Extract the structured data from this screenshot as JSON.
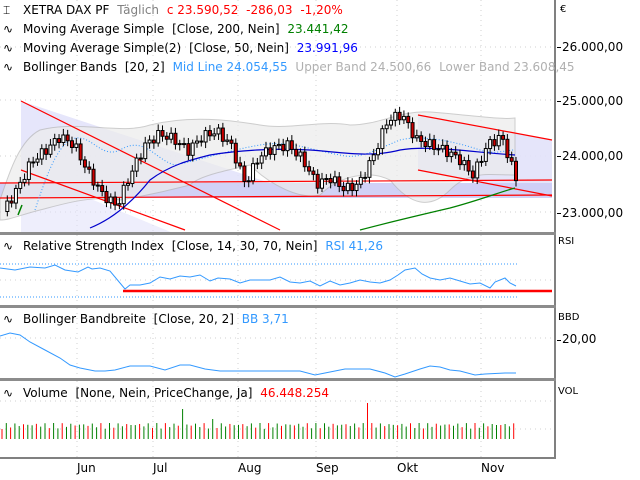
{
  "price_panel": {
    "symbol": "XETRA DAX PF",
    "period": "Täglich",
    "close_label": "c 23.590,52",
    "change": "-286,03",
    "change_pct": "-1,20%",
    "currency_symbol": "€",
    "indicators": [
      {
        "name": "Moving Average Simple",
        "params": "[Close, 200, Nein]",
        "value": "23.441,42",
        "color": "#008000"
      },
      {
        "name": "Moving Average Simple(2)",
        "params": "[Close, 50, Nein]",
        "value": "23.991,96",
        "color": "#0000ff"
      },
      {
        "name": "Bollinger Bands",
        "params": "[20, 2]",
        "mid": "Mid Line 24.054,55",
        "upper": "Upper Band 24.500,66",
        "lower": "Lower Band 23.608,45",
        "mid_color": "#3399ff",
        "band_color": "#c0c0c0"
      }
    ],
    "y_ticks": [
      "26.000,00",
      "25.000,00",
      "24.000,00",
      "23.000,00"
    ]
  },
  "rsi_panel": {
    "name": "Relative Strength Index",
    "params": "[Close, 14, 30, 70, Nein]",
    "value": "RSI 41,26",
    "axis_label": "RSI"
  },
  "bbw_panel": {
    "name": "Bollinger Bandbreite",
    "params": "[Close, 20, 2]",
    "value": "BB 3,71",
    "axis_label": "BBD",
    "y_ticks": [
      "20,00"
    ]
  },
  "volume_panel": {
    "name": "Volume",
    "params": "[None, Nein, PriceChange, Ja]",
    "value": "46.448.254",
    "axis_label": "VOL"
  },
  "x_axis": {
    "labels": [
      "Jun",
      "Jul",
      "Aug",
      "Sep",
      "Okt",
      "Nov"
    ]
  },
  "colors": {
    "up": "#ffffff",
    "down": "#cc0000",
    "trend": "#ff0000",
    "vol_up": "#008000",
    "vol_down": "#ff0000"
  },
  "chart_data": [
    {
      "type": "candlestick",
      "title": "XETRA DAX PF Täglich",
      "xlabel": "",
      "ylabel": "€",
      "x_ticks": [
        "Jun",
        "Jul",
        "Aug",
        "Sep",
        "Okt",
        "Nov"
      ],
      "ylim": [
        22700,
        26300
      ],
      "last_close": 23590.52,
      "series": [
        {
          "name": "SMA 200",
          "last": 23441.42
        },
        {
          "name": "SMA 50",
          "last": 23991.96
        },
        {
          "name": "BB Mid",
          "last": 24054.55
        },
        {
          "name": "BB Upper",
          "last": 24500.66
        },
        {
          "name": "BB Lower",
          "last": 23608.45
        }
      ],
      "approx_close_path": [
        23000,
        23400,
        23900,
        24100,
        24350,
        24200,
        23700,
        23300,
        23100,
        23700,
        24200,
        24400,
        24300,
        24100,
        24350,
        24450,
        24200,
        23500,
        24000,
        24150,
        24200,
        23950,
        23500,
        23600,
        23400,
        23500,
        24000,
        24650,
        24750,
        24300,
        24200,
        24100,
        23950,
        23650,
        24200,
        24350,
        23590
      ]
    },
    {
      "type": "line",
      "title": "Relative Strength Index",
      "last": 41.26,
      "levels": [
        30,
        70
      ]
    },
    {
      "type": "line",
      "title": "Bollinger Bandbreite",
      "last": 3.71,
      "y_ticks": [
        20
      ]
    },
    {
      "type": "bar",
      "title": "Volume",
      "last": 46448254
    }
  ]
}
